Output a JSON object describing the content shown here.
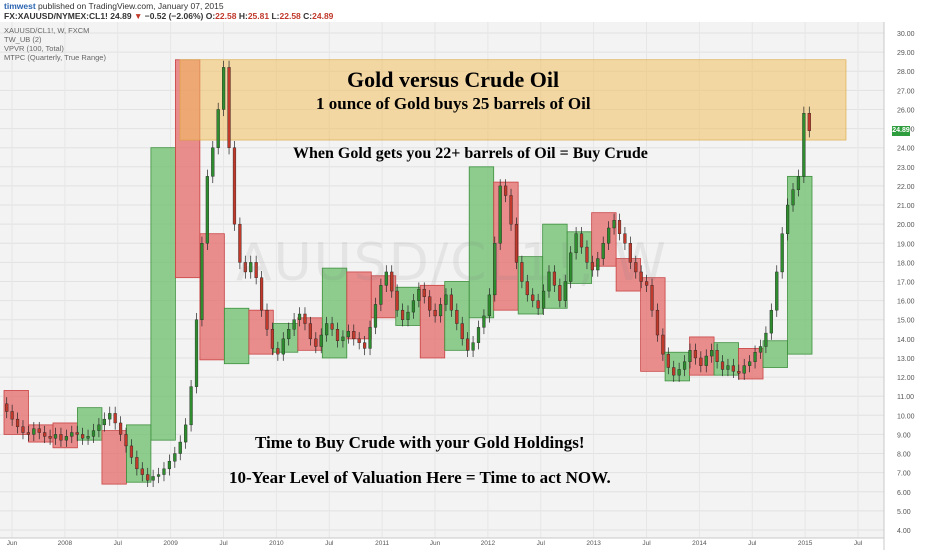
{
  "header": {
    "author": "timwest",
    "published_text": "published on TradingView.com, January 07, 2015",
    "symbol": "FX:XAUUSD/NYMEX:CL1!",
    "last": "24.89",
    "change_arrow": "▼",
    "change": "−0.52 (−2.06%)",
    "o_label": "O:",
    "o_value": "22.58",
    "h_label": "H:",
    "h_value": "25.81",
    "l_label": "L:",
    "l_value": "22.58",
    "c_label": "C:",
    "c_value": "24.89"
  },
  "indicators": {
    "line1": "XAUUSD/CL1!, W, FXCM",
    "line2": "TW_UB (2)",
    "line3": "VPVR (100, Total)",
    "line4": "MTPC (Quarterly, True Range)"
  },
  "watermark": "AUUSD/CL1!, W",
  "annotations": {
    "title": "Gold versus Crude Oil",
    "subtitle": "1 ounce of Gold buys 25 barrels of Oil",
    "rule": "When Gold gets you 22+ barrels of Oil = Buy Crude",
    "buy": "Time to Buy Crude with your Gold Holdings!",
    "valuation": "10-Year Level of Valuation Here = Time to act NOW."
  },
  "price_tag": "24.89",
  "colors": {
    "up_box": "#6cbf6c",
    "down_box": "#e46a6a",
    "highlight": "#f0c060",
    "candle_up": "#2e8b2e",
    "candle_down": "#c0392b",
    "tag": "#2e9d3d"
  },
  "chart_data": {
    "type": "candlestick",
    "y_ticks": [
      "4.00",
      "5.00",
      "6.00",
      "7.00",
      "8.00",
      "9.00",
      "10.00",
      "11.00",
      "12.00",
      "13.00",
      "14.00",
      "15.00",
      "16.00",
      "17.00",
      "18.00",
      "19.00",
      "20.00",
      "21.00",
      "22.00",
      "23.00",
      "24.00",
      "25.00",
      "26.00",
      "27.00",
      "28.00",
      "29.00",
      "30.00"
    ],
    "ylim": [
      4,
      30
    ],
    "x_ticks": [
      "Jun",
      "2008",
      "Jul",
      "2009",
      "Jul",
      "2010",
      "Jul",
      "2011",
      "Jun",
      "2012",
      "Jul",
      "2013",
      "Jul",
      "2014",
      "Jul",
      "2015",
      "Jul"
    ],
    "highlight_zone": {
      "x_start": 0,
      "x_end": 1,
      "y_low": 24.4,
      "y_high": 28.6
    },
    "quarter_boxes": [
      {
        "d": "down",
        "q0": 0,
        "low": 9.0,
        "high": 11.3
      },
      {
        "d": "down",
        "q0": 1,
        "low": 8.6,
        "high": 9.5
      },
      {
        "d": "down",
        "q0": 2,
        "low": 8.3,
        "high": 9.6
      },
      {
        "d": "up",
        "q0": 3,
        "low": 8.7,
        "high": 10.4
      },
      {
        "d": "down",
        "q0": 4,
        "low": 6.4,
        "high": 9.2
      },
      {
        "d": "up",
        "q0": 5,
        "low": 6.5,
        "high": 9.5
      },
      {
        "d": "up",
        "q0": 6,
        "low": 8.7,
        "high": 24.0
      },
      {
        "d": "down",
        "q0": 7,
        "low": 17.2,
        "high": 28.6
      },
      {
        "d": "down",
        "q0": 8,
        "low": 12.9,
        "high": 19.5
      },
      {
        "d": "up",
        "q0": 9,
        "low": 12.7,
        "high": 15.6
      },
      {
        "d": "down",
        "q0": 10,
        "low": 13.2,
        "high": 15.5
      },
      {
        "d": "up",
        "q0": 11,
        "low": 13.3,
        "high": 14.8
      },
      {
        "d": "down",
        "q0": 12,
        "low": 13.4,
        "high": 15.1
      },
      {
        "d": "up",
        "q0": 13,
        "low": 13.0,
        "high": 17.7
      },
      {
        "d": "down",
        "q0": 14,
        "low": 14.0,
        "high": 17.5
      },
      {
        "d": "down",
        "q0": 15,
        "low": 15.1,
        "high": 17.3
      },
      {
        "d": "up",
        "q0": 16,
        "low": 14.7,
        "high": 16.7
      },
      {
        "d": "down",
        "q0": 17,
        "low": 13.0,
        "high": 16.8
      },
      {
        "d": "up",
        "q0": 18,
        "low": 13.4,
        "high": 17.0
      },
      {
        "d": "up",
        "q0": 19,
        "low": 15.1,
        "high": 23.0
      },
      {
        "d": "down",
        "q0": 20,
        "low": 15.5,
        "high": 22.2
      },
      {
        "d": "up",
        "q0": 21,
        "low": 15.3,
        "high": 18.3
      },
      {
        "d": "up",
        "q0": 22,
        "low": 15.6,
        "high": 20.0
      },
      {
        "d": "up",
        "q0": 23,
        "low": 16.9,
        "high": 19.6
      },
      {
        "d": "down",
        "q0": 24,
        "low": 17.8,
        "high": 20.6
      },
      {
        "d": "down",
        "q0": 25,
        "low": 16.5,
        "high": 18.2
      },
      {
        "d": "down",
        "q0": 26,
        "low": 12.3,
        "high": 17.2
      },
      {
        "d": "up",
        "q0": 27,
        "low": 11.8,
        "high": 13.3
      },
      {
        "d": "down",
        "q0": 28,
        "low": 12.1,
        "high": 14.1
      },
      {
        "d": "up",
        "q0": 29,
        "low": 12.1,
        "high": 13.8
      },
      {
        "d": "down",
        "q0": 30,
        "low": 11.9,
        "high": 13.5
      },
      {
        "d": "up",
        "q0": 31,
        "low": 12.5,
        "high": 13.9
      },
      {
        "d": "up",
        "q0": 32,
        "low": 13.2,
        "high": 22.5
      }
    ],
    "path": [
      10.6,
      10.2,
      9.8,
      9.4,
      9.1,
      9.0,
      9.3,
      9.1,
      8.9,
      8.8,
      9.0,
      8.7,
      8.9,
      9.1,
      9.0,
      8.8,
      8.9,
      9.2,
      9.5,
      9.8,
      10.1,
      9.6,
      9.0,
      8.4,
      7.8,
      7.2,
      6.9,
      6.6,
      6.8,
      6.9,
      7.2,
      7.6,
      8.0,
      8.6,
      9.5,
      11.5,
      15.0,
      19.0,
      22.5,
      24.0,
      26.0,
      28.2,
      24.0,
      20.0,
      18.0,
      17.5,
      18.0,
      17.2,
      15.5,
      14.5,
      13.5,
      13.2,
      14.0,
      14.5,
      15.0,
      15.3,
      14.8,
      14.0,
      13.6,
      14.2,
      14.8,
      14.5,
      13.9,
      14.1,
      14.4,
      14.0,
      13.8,
      13.5,
      14.6,
      15.8,
      16.8,
      17.5,
      16.5,
      15.5,
      15.0,
      15.4,
      16.0,
      16.6,
      16.2,
      15.5,
      15.2,
      15.8,
      16.3,
      15.5,
      14.8,
      14.0,
      13.4,
      13.8,
      14.6,
      15.2,
      16.3,
      19.0,
      22.0,
      21.5,
      20.0,
      18.0,
      17.0,
      16.3,
      16.0,
      15.6,
      16.5,
      17.5,
      16.8,
      16.0,
      17.0,
      18.5,
      19.5,
      18.8,
      18.0,
      17.6,
      18.2,
      19.0,
      19.8,
      20.2,
      19.5,
      19.0,
      18.0,
      17.5,
      17.0,
      16.8,
      15.5,
      14.2,
      13.2,
      12.5,
      12.1,
      12.4,
      12.8,
      13.4,
      13.0,
      12.6,
      13.1,
      13.4,
      12.8,
      12.4,
      12.6,
      12.3,
      12.2,
      12.6,
      12.8,
      13.3,
      13.6,
      14.3,
      15.5,
      17.5,
      19.5,
      21.0,
      21.8,
      22.5,
      25.8,
      24.89
    ]
  }
}
